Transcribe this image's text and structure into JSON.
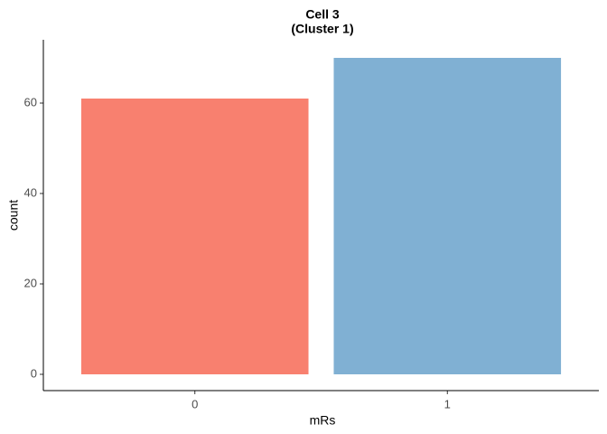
{
  "chart_data": {
    "type": "bar",
    "title": "Cell 3",
    "subtitle": "(Cluster 1)",
    "x_label": "mRs",
    "y_label": "count",
    "categories": [
      "0",
      "1"
    ],
    "values": [
      61,
      70
    ],
    "colors": [
      "#f8806f",
      "#80b0d3"
    ],
    "ylim": [
      -3.6,
      74
    ],
    "yticks": [
      0,
      20,
      40,
      60
    ],
    "grid": false
  }
}
